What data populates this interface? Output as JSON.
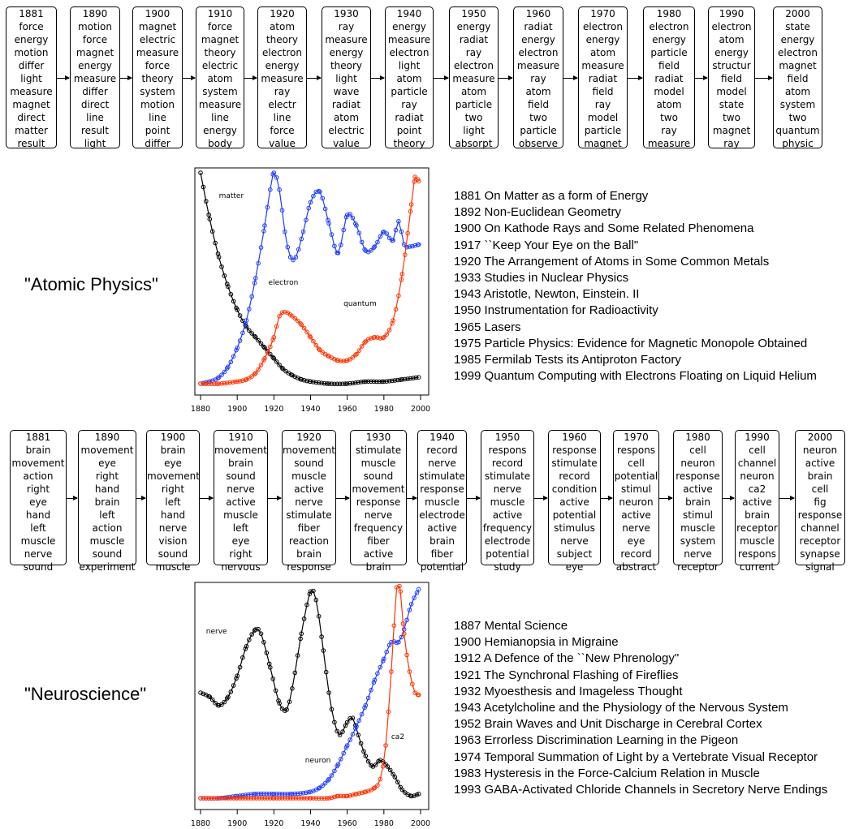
{
  "physics": {
    "label": "\"Atomic Physics\"",
    "boxes": [
      {
        "year": "1881",
        "words": [
          "force",
          "energy",
          "motion",
          "differ",
          "light",
          "measure",
          "magnet",
          "direct",
          "matter",
          "result"
        ]
      },
      {
        "year": "1890",
        "words": [
          "motion",
          "force",
          "magnet",
          "energy",
          "measure",
          "differ",
          "direct",
          "line",
          "result",
          "light"
        ]
      },
      {
        "year": "1900",
        "words": [
          "magnet",
          "electric",
          "measure",
          "force",
          "theory",
          "system",
          "motion",
          "line",
          "point",
          "differ"
        ]
      },
      {
        "year": "1910",
        "words": [
          "force",
          "magnet",
          "theory",
          "electric",
          "atom",
          "system",
          "measure",
          "line",
          "energy",
          "body"
        ]
      },
      {
        "year": "1920",
        "words": [
          "atom",
          "theory",
          "electron",
          "energy",
          "measure",
          "ray",
          "electr",
          "line",
          "force",
          "value"
        ]
      },
      {
        "year": "1930",
        "words": [
          "ray",
          "measure",
          "energy",
          "theory",
          "light",
          "wave",
          "radiat",
          "atom",
          "electric",
          "value"
        ]
      },
      {
        "year": "1940",
        "words": [
          "energy",
          "measure",
          "electron",
          "light",
          "atom",
          "particle",
          "ray",
          "radiat",
          "point",
          "theory"
        ]
      },
      {
        "year": "1950",
        "words": [
          "energy",
          "radiat",
          "ray",
          "electron",
          "measure",
          "atom",
          "particle",
          "two",
          "light",
          "absorpt"
        ]
      },
      {
        "year": "1960",
        "words": [
          "radiat",
          "energy",
          "electron",
          "measure",
          "ray",
          "atom",
          "field",
          "two",
          "particle",
          "observe"
        ]
      },
      {
        "year": "1970",
        "words": [
          "electron",
          "energy",
          "atom",
          "measure",
          "radiat",
          "field",
          "ray",
          "model",
          "particle",
          "magnet"
        ]
      },
      {
        "year": "1980",
        "words": [
          "electron",
          "energy",
          "particle",
          "field",
          "radiat",
          "model",
          "atom",
          "two",
          "ray",
          "measure"
        ]
      },
      {
        "year": "1990",
        "words": [
          "electron",
          "atom",
          "energy",
          "structur",
          "field",
          "model",
          "state",
          "two",
          "magnet",
          "ray"
        ]
      },
      {
        "year": "2000",
        "words": [
          "state",
          "energy",
          "electron",
          "magnet",
          "field",
          "atom",
          "system",
          "two",
          "quantum",
          "physic"
        ]
      }
    ],
    "titles": [
      "1881 On Matter as a form of Energy",
      "1892 Non-Euclidean Geometry",
      "1900 On Kathode Rays and Some Related Phenomena",
      "1917 ``Keep Your Eye on the Ball\"",
      "1920 The Arrangement of Atoms in Some Common Metals",
      "1933 Studies in Nuclear Physics",
      "1943 Aristotle, Newton, Einstein. II",
      "1950 Instrumentation for Radioactivity",
      "1965 Lasers",
      "1975 Particle Physics: Evidence for Magnetic Monopole Obtained",
      "1985 Fermilab Tests its Antiproton Factory",
      "1999 Quantum Computing with Electrons Floating on Liquid Helium"
    ]
  },
  "neuro": {
    "label": "\"Neuroscience\"",
    "boxes": [
      {
        "year": "1881",
        "words": [
          "brain",
          "movement",
          "action",
          "right",
          "eye",
          "hand",
          "left",
          "muscle",
          "nerve",
          "sound"
        ]
      },
      {
        "year": "1890",
        "words": [
          "movement",
          "eye",
          "right",
          "hand",
          "brain",
          "left",
          "action",
          "muscle",
          "sound",
          "experiment"
        ]
      },
      {
        "year": "1900",
        "words": [
          "brain",
          "eye",
          "movement",
          "right",
          "left",
          "hand",
          "nerve",
          "vision",
          "sound",
          "muscle"
        ]
      },
      {
        "year": "1910",
        "words": [
          "movement",
          "brain",
          "sound",
          "nerve",
          "active",
          "muscle",
          "left",
          "eye",
          "right",
          "nervous"
        ]
      },
      {
        "year": "1920",
        "words": [
          "movement",
          "sound",
          "muscle",
          "active",
          "nerve",
          "stimulate",
          "fiber",
          "reaction",
          "brain",
          "response"
        ]
      },
      {
        "year": "1930",
        "words": [
          "stimulate",
          "muscle",
          "sound",
          "movement",
          "response",
          "nerve",
          "frequency",
          "fiber",
          "active",
          "brain"
        ]
      },
      {
        "year": "1940",
        "words": [
          "record",
          "nerve",
          "stimulate",
          "response",
          "muscle",
          "electrode",
          "active",
          "brain",
          "fiber",
          "potential"
        ]
      },
      {
        "year": "1950",
        "words": [
          "respons",
          "record",
          "stimulate",
          "nerve",
          "muscle",
          "active",
          "frequency",
          "electrode",
          "potential",
          "study"
        ]
      },
      {
        "year": "1960",
        "words": [
          "response",
          "stimulate",
          "record",
          "condition",
          "active",
          "potential",
          "stimulus",
          "nerve",
          "subject",
          "eye"
        ]
      },
      {
        "year": "1970",
        "words": [
          "respons",
          "cell",
          "potential",
          "stimul",
          "neuron",
          "active",
          "nerve",
          "eye",
          "record",
          "abstract"
        ]
      },
      {
        "year": "1980",
        "words": [
          "cell",
          "neuron",
          "response",
          "active",
          "brain",
          "stimul",
          "muscle",
          "system",
          "nerve",
          "receptor"
        ]
      },
      {
        "year": "1990",
        "words": [
          "cell",
          "channel",
          "neuron",
          "ca2",
          "active",
          "brain",
          "receptor",
          "muscle",
          "respons",
          "current"
        ]
      },
      {
        "year": "2000",
        "words": [
          "neuron",
          "active",
          "brain",
          "cell",
          "fig",
          "response",
          "channel",
          "receptor",
          "synapse",
          "signal"
        ]
      }
    ],
    "titles": [
      "1887 Mental Science",
      "1900 Hemianopsia in Migraine",
      "1912 A Defence of the ``New Phrenology\"",
      "1921 The Synchronal Flashing of Fireflies",
      "1932 Myoesthesis and Imageless Thought",
      "1943 Acetylcholine and the Physiology of the Nervous System",
      "1952 Brain Waves and Unit Discharge in Cerebral Cortex",
      "1963 Errorless Discrimination Learning in the Pigeon",
      "1974 Temporal Summation of Light by a Vertebrate Visual Receptor",
      "1983 Hysteresis in the Force-Calcium Relation in Muscle",
      "1993 GABA-Activated Chloride Channels in Secretory Nerve Endings"
    ]
  },
  "chart_data": [
    {
      "type": "line",
      "title": "",
      "xlabel": "",
      "ylabel": "",
      "xlim": [
        1880,
        2000
      ],
      "ylim": [
        0,
        1
      ],
      "x_ticks": [
        "1880",
        "1900",
        "1920",
        "1940",
        "1960",
        "1980",
        "2000"
      ],
      "grid": false,
      "series": [
        {
          "name": "matter",
          "color": "#000000",
          "x": [
            1880,
            1885,
            1890,
            1895,
            1900,
            1905,
            1910,
            1915,
            1920,
            1925,
            1930,
            1935,
            1940,
            1950,
            1960,
            1970,
            1980,
            1990,
            1999
          ],
          "values": [
            1.0,
            0.78,
            0.6,
            0.46,
            0.35,
            0.27,
            0.22,
            0.17,
            0.12,
            0.07,
            0.04,
            0.02,
            0.01,
            0.0,
            0.0,
            0.01,
            0.01,
            0.02,
            0.03
          ]
        },
        {
          "name": "electron",
          "color": "#1f3cff",
          "x": [
            1880,
            1885,
            1890,
            1895,
            1900,
            1905,
            1910,
            1915,
            1918,
            1920,
            1923,
            1926,
            1929,
            1932,
            1936,
            1940,
            1945,
            1950,
            1955,
            1960,
            1965,
            1970,
            1975,
            1980,
            1985,
            1988,
            1991,
            1994,
            1999
          ],
          "values": [
            0.0,
            0.01,
            0.03,
            0.08,
            0.17,
            0.3,
            0.5,
            0.75,
            0.92,
            1.0,
            0.92,
            0.72,
            0.6,
            0.6,
            0.72,
            0.86,
            0.91,
            0.76,
            0.62,
            0.8,
            0.75,
            0.63,
            0.65,
            0.72,
            0.68,
            0.77,
            0.66,
            0.65,
            0.66
          ]
        },
        {
          "name": "quantum",
          "color": "#ff3300",
          "x": [
            1880,
            1890,
            1900,
            1905,
            1910,
            1915,
            1920,
            1923,
            1926,
            1930,
            1935,
            1940,
            1945,
            1950,
            1955,
            1960,
            1965,
            1970,
            1975,
            1980,
            1985,
            1990,
            1995,
            1997,
            1999
          ],
          "values": [
            0.0,
            0.0,
            0.01,
            0.02,
            0.05,
            0.12,
            0.22,
            0.32,
            0.34,
            0.32,
            0.28,
            0.22,
            0.16,
            0.13,
            0.11,
            0.11,
            0.14,
            0.2,
            0.22,
            0.22,
            0.3,
            0.52,
            0.85,
            0.98,
            0.96
          ]
        }
      ]
    },
    {
      "type": "line",
      "title": "",
      "xlabel": "",
      "ylabel": "",
      "xlim": [
        1880,
        2000
      ],
      "ylim": [
        0,
        1
      ],
      "x_ticks": [
        "1880",
        "1900",
        "1920",
        "1940",
        "1960",
        "1980",
        "2000"
      ],
      "grid": false,
      "series": [
        {
          "name": "nerve",
          "color": "#000000",
          "x": [
            1880,
            1885,
            1890,
            1895,
            1900,
            1905,
            1910,
            1913,
            1918,
            1923,
            1927,
            1930,
            1935,
            1940,
            1943,
            1947,
            1950,
            1953,
            1956,
            1960,
            1963,
            1966,
            1970,
            1974,
            1978,
            1982,
            1986,
            1990,
            1995,
            1999
          ],
          "values": [
            0.5,
            0.48,
            0.44,
            0.48,
            0.58,
            0.72,
            0.8,
            0.78,
            0.62,
            0.45,
            0.42,
            0.52,
            0.78,
            0.98,
            0.94,
            0.7,
            0.5,
            0.36,
            0.3,
            0.36,
            0.38,
            0.3,
            0.2,
            0.15,
            0.18,
            0.15,
            0.1,
            0.04,
            0.01,
            0.02
          ]
        },
        {
          "name": "neuron",
          "color": "#1f3cff",
          "x": [
            1880,
            1890,
            1900,
            1910,
            1920,
            1930,
            1940,
            1945,
            1950,
            1955,
            1960,
            1965,
            1970,
            1975,
            1980,
            1984,
            1988,
            1991,
            1995,
            1999
          ],
          "values": [
            0.0,
            0.0,
            0.01,
            0.02,
            0.02,
            0.02,
            0.03,
            0.05,
            0.09,
            0.16,
            0.25,
            0.34,
            0.44,
            0.56,
            0.66,
            0.74,
            0.74,
            0.8,
            0.92,
            0.99
          ]
        },
        {
          "name": "ca2",
          "color": "#ff3300",
          "x": [
            1880,
            1900,
            1920,
            1940,
            1950,
            1955,
            1960,
            1965,
            1970,
            1975,
            1978,
            1981,
            1984,
            1987,
            1989,
            1991,
            1994,
            1997,
            1999
          ],
          "values": [
            0.0,
            0.0,
            0.0,
            0.0,
            0.0,
            0.01,
            0.01,
            0.02,
            0.03,
            0.05,
            0.09,
            0.25,
            0.6,
            1.0,
            0.98,
            0.78,
            0.6,
            0.5,
            0.49
          ]
        }
      ]
    }
  ]
}
